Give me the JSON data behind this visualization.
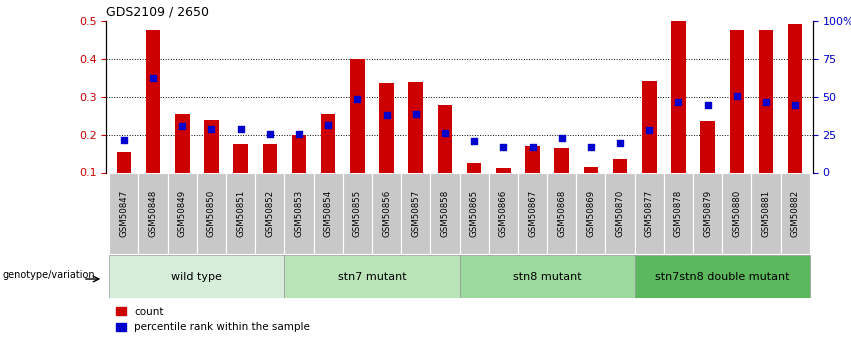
{
  "title": "GDS2109 / 2650",
  "samples": [
    "GSM50847",
    "GSM50848",
    "GSM50849",
    "GSM50850",
    "GSM50851",
    "GSM50852",
    "GSM50853",
    "GSM50854",
    "GSM50855",
    "GSM50856",
    "GSM50857",
    "GSM50858",
    "GSM50865",
    "GSM50866",
    "GSM50867",
    "GSM50868",
    "GSM50869",
    "GSM50870",
    "GSM50877",
    "GSM50878",
    "GSM50879",
    "GSM50880",
    "GSM50881",
    "GSM50882"
  ],
  "red_values": [
    0.155,
    0.475,
    0.255,
    0.238,
    0.175,
    0.175,
    0.2,
    0.253,
    0.4,
    0.335,
    0.338,
    0.278,
    0.125,
    0.112,
    0.17,
    0.165,
    0.115,
    0.135,
    0.342,
    0.5,
    0.237,
    0.475,
    0.475,
    0.492
  ],
  "blue_values": [
    0.185,
    0.348,
    0.222,
    0.215,
    0.215,
    0.202,
    0.202,
    0.225,
    0.293,
    0.252,
    0.253,
    0.203,
    0.182,
    0.168,
    0.168,
    0.192,
    0.168,
    0.178,
    0.212,
    0.285,
    0.278,
    0.302,
    0.285,
    0.278
  ],
  "groups": [
    {
      "label": "wild type",
      "start": 0,
      "end": 6,
      "color": "#d6edd9"
    },
    {
      "label": "stn7 mutant",
      "start": 6,
      "end": 12,
      "color": "#b8e4b8"
    },
    {
      "label": "stn8 mutant",
      "start": 12,
      "end": 18,
      "color": "#9cd99c"
    },
    {
      "label": "stn7stn8 double mutant",
      "start": 18,
      "end": 24,
      "color": "#5cb85c"
    }
  ],
  "ylim_left": [
    0.1,
    0.5
  ],
  "ylim_right": [
    0,
    100
  ],
  "yticks_left": [
    0.1,
    0.2,
    0.3,
    0.4,
    0.5
  ],
  "yticks_right": [
    0,
    25,
    50,
    75,
    100
  ],
  "ytick_right_labels": [
    "0",
    "25",
    "50",
    "75",
    "100%"
  ],
  "bar_color": "#cc0000",
  "dot_color": "#0000cc",
  "background_color": "#ffffff",
  "genotype_label": "genotype/variation",
  "bar_width": 0.5,
  "dot_size": 18,
  "xtick_bg_color": "#c8c8c8",
  "xtick_border_color": "#ffffff",
  "grid_lines": [
    0.2,
    0.3,
    0.4
  ]
}
